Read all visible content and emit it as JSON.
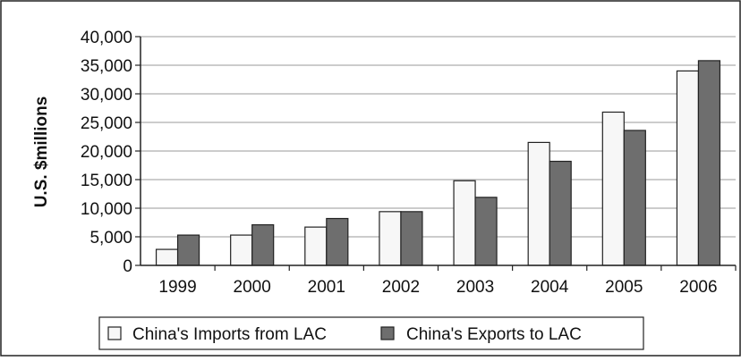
{
  "chart_data": {
    "type": "bar",
    "title": "",
    "xlabel": "",
    "ylabel": "U.S. $millions",
    "ylim": [
      0,
      40000
    ],
    "yticks": [
      "0",
      "5,000",
      "10,000",
      "15,000",
      "20,000",
      "25,000",
      "30,000",
      "35,000",
      "40,000"
    ],
    "categories": [
      "1999",
      "2000",
      "2001",
      "2002",
      "2003",
      "2004",
      "2005",
      "2006"
    ],
    "series": [
      {
        "name": "China's Imports from LAC",
        "color": "#f7f7f7",
        "values": [
          2800,
          5300,
          6700,
          9400,
          14800,
          21500,
          26800,
          34000
        ]
      },
      {
        "name": "China's Exports to LAC",
        "color": "#6e6e6e",
        "values": [
          5300,
          7100,
          8200,
          9400,
          11900,
          18200,
          23600,
          35800
        ]
      }
    ],
    "grid": true,
    "legend_position": "bottom-left"
  }
}
